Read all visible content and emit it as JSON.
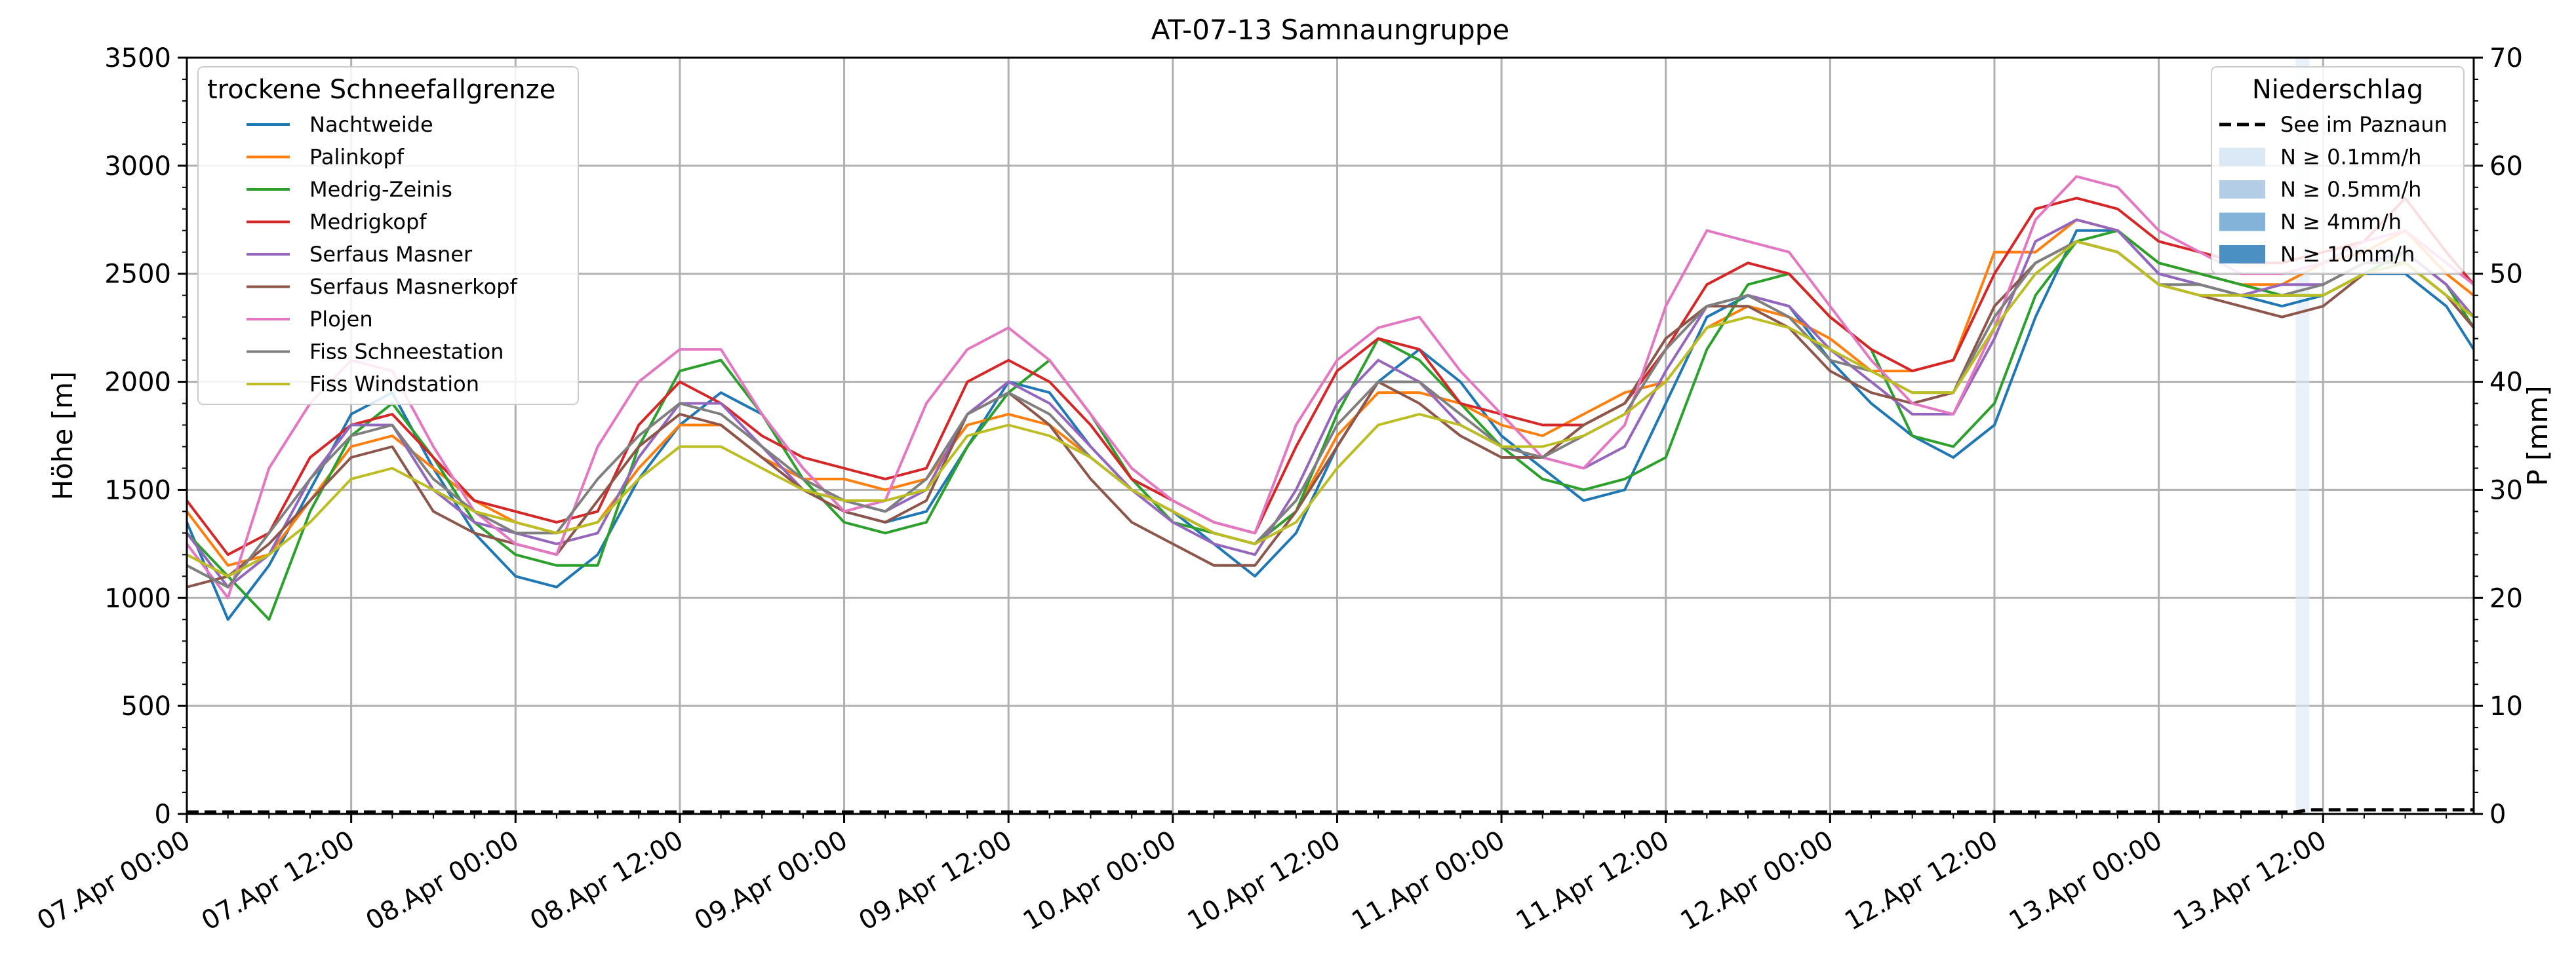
{
  "chart_data": {
    "type": "line",
    "title": "AT-07-13 Samnaungruppe",
    "ylabel": "Höhe [m]",
    "y2label": "P [mm]",
    "ylim": [
      0,
      3500
    ],
    "y2lim": [
      0,
      70
    ],
    "yticks": [
      "0",
      "500",
      "1000",
      "1500",
      "2000",
      "2500",
      "3000",
      "3500"
    ],
    "y2ticks": [
      "0",
      "10",
      "20",
      "30",
      "40",
      "50",
      "60",
      "70"
    ],
    "xlim": [
      "2025-04-07T00:00",
      "2025-04-13T23:00"
    ],
    "xtick_labels": [
      "07.Apr 00:00",
      "07.Apr 12:00",
      "08.Apr 00:00",
      "08.Apr 12:00",
      "09.Apr 00:00",
      "09.Apr 12:00",
      "10.Apr 00:00",
      "10.Apr 12:00",
      "11.Apr 00:00",
      "11.Apr 12:00",
      "12.Apr 00:00",
      "12.Apr 12:00",
      "13.Apr 00:00",
      "13.Apr 12:00"
    ],
    "grid": true,
    "legend_station": {
      "title": "trockene Schneefallgrenze",
      "placement": "top-left"
    },
    "legend_precip": {
      "title": "Niederschlag",
      "placement": "top-right",
      "entries": [
        {
          "label": "See im Paznaun",
          "style": "dashed",
          "color": "#000000"
        },
        {
          "label": "N ≥ 0.1mm/h",
          "color": "#dbe8f5"
        },
        {
          "label": "N ≥ 0.5mm/h",
          "color": "#b3cde6"
        },
        {
          "label": "N ≥ 4mm/h",
          "color": "#83b3d9"
        },
        {
          "label": "N ≥ 10mm/h",
          "color": "#4a90c2"
        }
      ]
    },
    "x_hours": [
      0,
      3,
      6,
      9,
      12,
      15,
      18,
      21,
      24,
      27,
      30,
      33,
      36,
      39,
      42,
      45,
      48,
      51,
      54,
      57,
      60,
      63,
      66,
      69,
      72,
      75,
      78,
      81,
      84,
      87,
      90,
      93,
      96,
      99,
      102,
      105,
      108,
      111,
      114,
      117,
      120,
      123,
      126,
      129,
      132,
      135,
      138,
      141,
      144,
      147,
      150,
      153,
      156,
      159,
      162,
      165,
      167
    ],
    "series": [
      {
        "name": "Nachtweide",
        "color": "#1f77b4",
        "values": [
          1350,
          900,
          1150,
          1500,
          1850,
          1950,
          1600,
          1300,
          1100,
          1050,
          1200,
          1550,
          1800,
          1950,
          1850,
          1600,
          1400,
          1350,
          1400,
          1700,
          2000,
          1950,
          1700,
          1500,
          1400,
          1250,
          1100,
          1300,
          1700,
          2000,
          2150,
          2000,
          1750,
          1600,
          1450,
          1500,
          1900,
          2300,
          2400,
          2350,
          2100,
          1900,
          1750,
          1650,
          1800,
          2300,
          2700,
          2700,
          2500,
          2450,
          2400,
          2350,
          2400,
          2500,
          2500,
          2350,
          2150
        ]
      },
      {
        "name": "Palinkopf",
        "color": "#ff7f0e",
        "values": [
          1400,
          1150,
          1200,
          1450,
          1700,
          1750,
          1600,
          1450,
          1350,
          1300,
          1350,
          1600,
          1800,
          1800,
          1650,
          1550,
          1550,
          1500,
          1550,
          1800,
          1850,
          1800,
          1650,
          1500,
          1400,
          1300,
          1250,
          1400,
          1750,
          1950,
          1950,
          1900,
          1800,
          1750,
          1850,
          1950,
          2000,
          2250,
          2350,
          2300,
          2200,
          2050,
          2050,
          2100,
          2600,
          2600,
          2750,
          2700,
          2550,
          2500,
          2450,
          2450,
          2550,
          2600,
          2700,
          2500,
          2400
        ]
      },
      {
        "name": "Medrig-Zeinis",
        "color": "#2ca02c",
        "values": [
          1300,
          1100,
          900,
          1400,
          1750,
          1900,
          1650,
          1350,
          1200,
          1150,
          1150,
          1700,
          2050,
          2100,
          1850,
          1550,
          1350,
          1300,
          1350,
          1700,
          1950,
          2100,
          1850,
          1550,
          1350,
          1300,
          1250,
          1400,
          1850,
          2200,
          2100,
          1900,
          1700,
          1550,
          1500,
          1550,
          1650,
          2150,
          2450,
          2500,
          2300,
          2150,
          1750,
          1700,
          1900,
          2400,
          2650,
          2700,
          2550,
          2500,
          2450,
          2400,
          2400,
          2500,
          2600,
          2450,
          2250
        ]
      },
      {
        "name": "Medrigkopf",
        "color": "#d62728",
        "values": [
          1450,
          1200,
          1300,
          1650,
          1800,
          1850,
          1650,
          1450,
          1400,
          1350,
          1400,
          1800,
          2000,
          1900,
          1750,
          1650,
          1600,
          1550,
          1600,
          2000,
          2100,
          2000,
          1800,
          1550,
          1450,
          1350,
          1300,
          1700,
          2050,
          2200,
          2150,
          1900,
          1850,
          1800,
          1800,
          1900,
          2150,
          2450,
          2550,
          2500,
          2300,
          2150,
          2050,
          2100,
          2500,
          2800,
          2850,
          2800,
          2650,
          2600,
          2550,
          2550,
          2600,
          2650,
          2850,
          2600,
          2450
        ]
      },
      {
        "name": "Serfaus Masner",
        "color": "#9467bd",
        "values": [
          1300,
          1050,
          1200,
          1550,
          1800,
          1800,
          1500,
          1350,
          1300,
          1250,
          1300,
          1650,
          1900,
          1900,
          1700,
          1500,
          1450,
          1400,
          1500,
          1850,
          2000,
          1900,
          1700,
          1500,
          1350,
          1250,
          1200,
          1500,
          1900,
          2100,
          2000,
          1800,
          1700,
          1650,
          1600,
          1700,
          2050,
          2350,
          2400,
          2350,
          2150,
          2000,
          1850,
          1850,
          2200,
          2650,
          2750,
          2700,
          2500,
          2450,
          2400,
          2450,
          2450,
          2550,
          2600,
          2450,
          2300
        ]
      },
      {
        "name": "Serfaus Masnerkopf",
        "color": "#8c564b",
        "values": [
          1050,
          1100,
          1250,
          1450,
          1650,
          1700,
          1400,
          1300,
          1250,
          1200,
          1450,
          1700,
          1850,
          1800,
          1650,
          1500,
          1400,
          1350,
          1450,
          1850,
          1950,
          1800,
          1550,
          1350,
          1250,
          1150,
          1150,
          1400,
          1700,
          2000,
          1900,
          1750,
          1650,
          1650,
          1800,
          1900,
          2200,
          2350,
          2350,
          2250,
          2050,
          1950,
          1900,
          1950,
          2350,
          2550,
          2650,
          2600,
          2450,
          2400,
          2350,
          2300,
          2350,
          2500,
          2550,
          2400,
          2250
        ]
      },
      {
        "name": "Plojen",
        "color": "#e377c2",
        "values": [
          1250,
          1000,
          1600,
          1900,
          2100,
          2050,
          1700,
          1400,
          1250,
          1200,
          1700,
          2000,
          2150,
          2150,
          1850,
          1600,
          1400,
          1450,
          1900,
          2150,
          2250,
          2100,
          1850,
          1600,
          1450,
          1350,
          1300,
          1800,
          2100,
          2250,
          2300,
          2050,
          1850,
          1650,
          1600,
          1800,
          2350,
          2700,
          2650,
          2600,
          2350,
          2100,
          1900,
          1850,
          2250,
          2750,
          2950,
          2900,
          2700,
          2600,
          2500,
          2500,
          2550,
          2650,
          2700,
          2550,
          2450
        ]
      },
      {
        "name": "Fiss Schneestation",
        "color": "#7f7f7f",
        "values": [
          1150,
          1050,
          1300,
          1550,
          1750,
          1800,
          1550,
          1400,
          1300,
          1300,
          1550,
          1750,
          1900,
          1850,
          1700,
          1550,
          1450,
          1400,
          1550,
          1850,
          1950,
          1850,
          1650,
          1500,
          1400,
          1300,
          1250,
          1450,
          1800,
          2000,
          2000,
          1850,
          1700,
          1650,
          1750,
          1850,
          2150,
          2350,
          2400,
          2300,
          2100,
          2050,
          1950,
          1950,
          2300,
          2550,
          2650,
          2600,
          2450,
          2450,
          2400,
          2400,
          2450,
          2550,
          2550,
          2400,
          2300
        ]
      },
      {
        "name": "Fiss Windstation",
        "color": "#bcbd22",
        "values": [
          1200,
          1100,
          1200,
          1350,
          1550,
          1600,
          1500,
          1400,
          1350,
          1300,
          1350,
          1550,
          1700,
          1700,
          1600,
          1500,
          1450,
          1450,
          1500,
          1750,
          1800,
          1750,
          1650,
          1500,
          1400,
          1300,
          1250,
          1350,
          1600,
          1800,
          1850,
          1800,
          1700,
          1700,
          1750,
          1850,
          2000,
          2250,
          2300,
          2250,
          2150,
          2050,
          1950,
          1950,
          2250,
          2500,
          2650,
          2600,
          2450,
          2400,
          2400,
          2400,
          2400,
          2500,
          2550,
          2400,
          2300
        ]
      }
    ],
    "precipitation": {
      "station": "See im Paznaun",
      "events": [
        {
          "start_hour": 154,
          "end_hour": 155,
          "rate_class": "N ≥ 0.1mm/h"
        }
      ],
      "cumulative_mm": [
        {
          "hour": 0,
          "value": 0
        },
        {
          "hour": 154,
          "value": 0
        },
        {
          "hour": 155,
          "value": 0.2
        },
        {
          "hour": 167,
          "value": 0.2
        }
      ]
    }
  }
}
